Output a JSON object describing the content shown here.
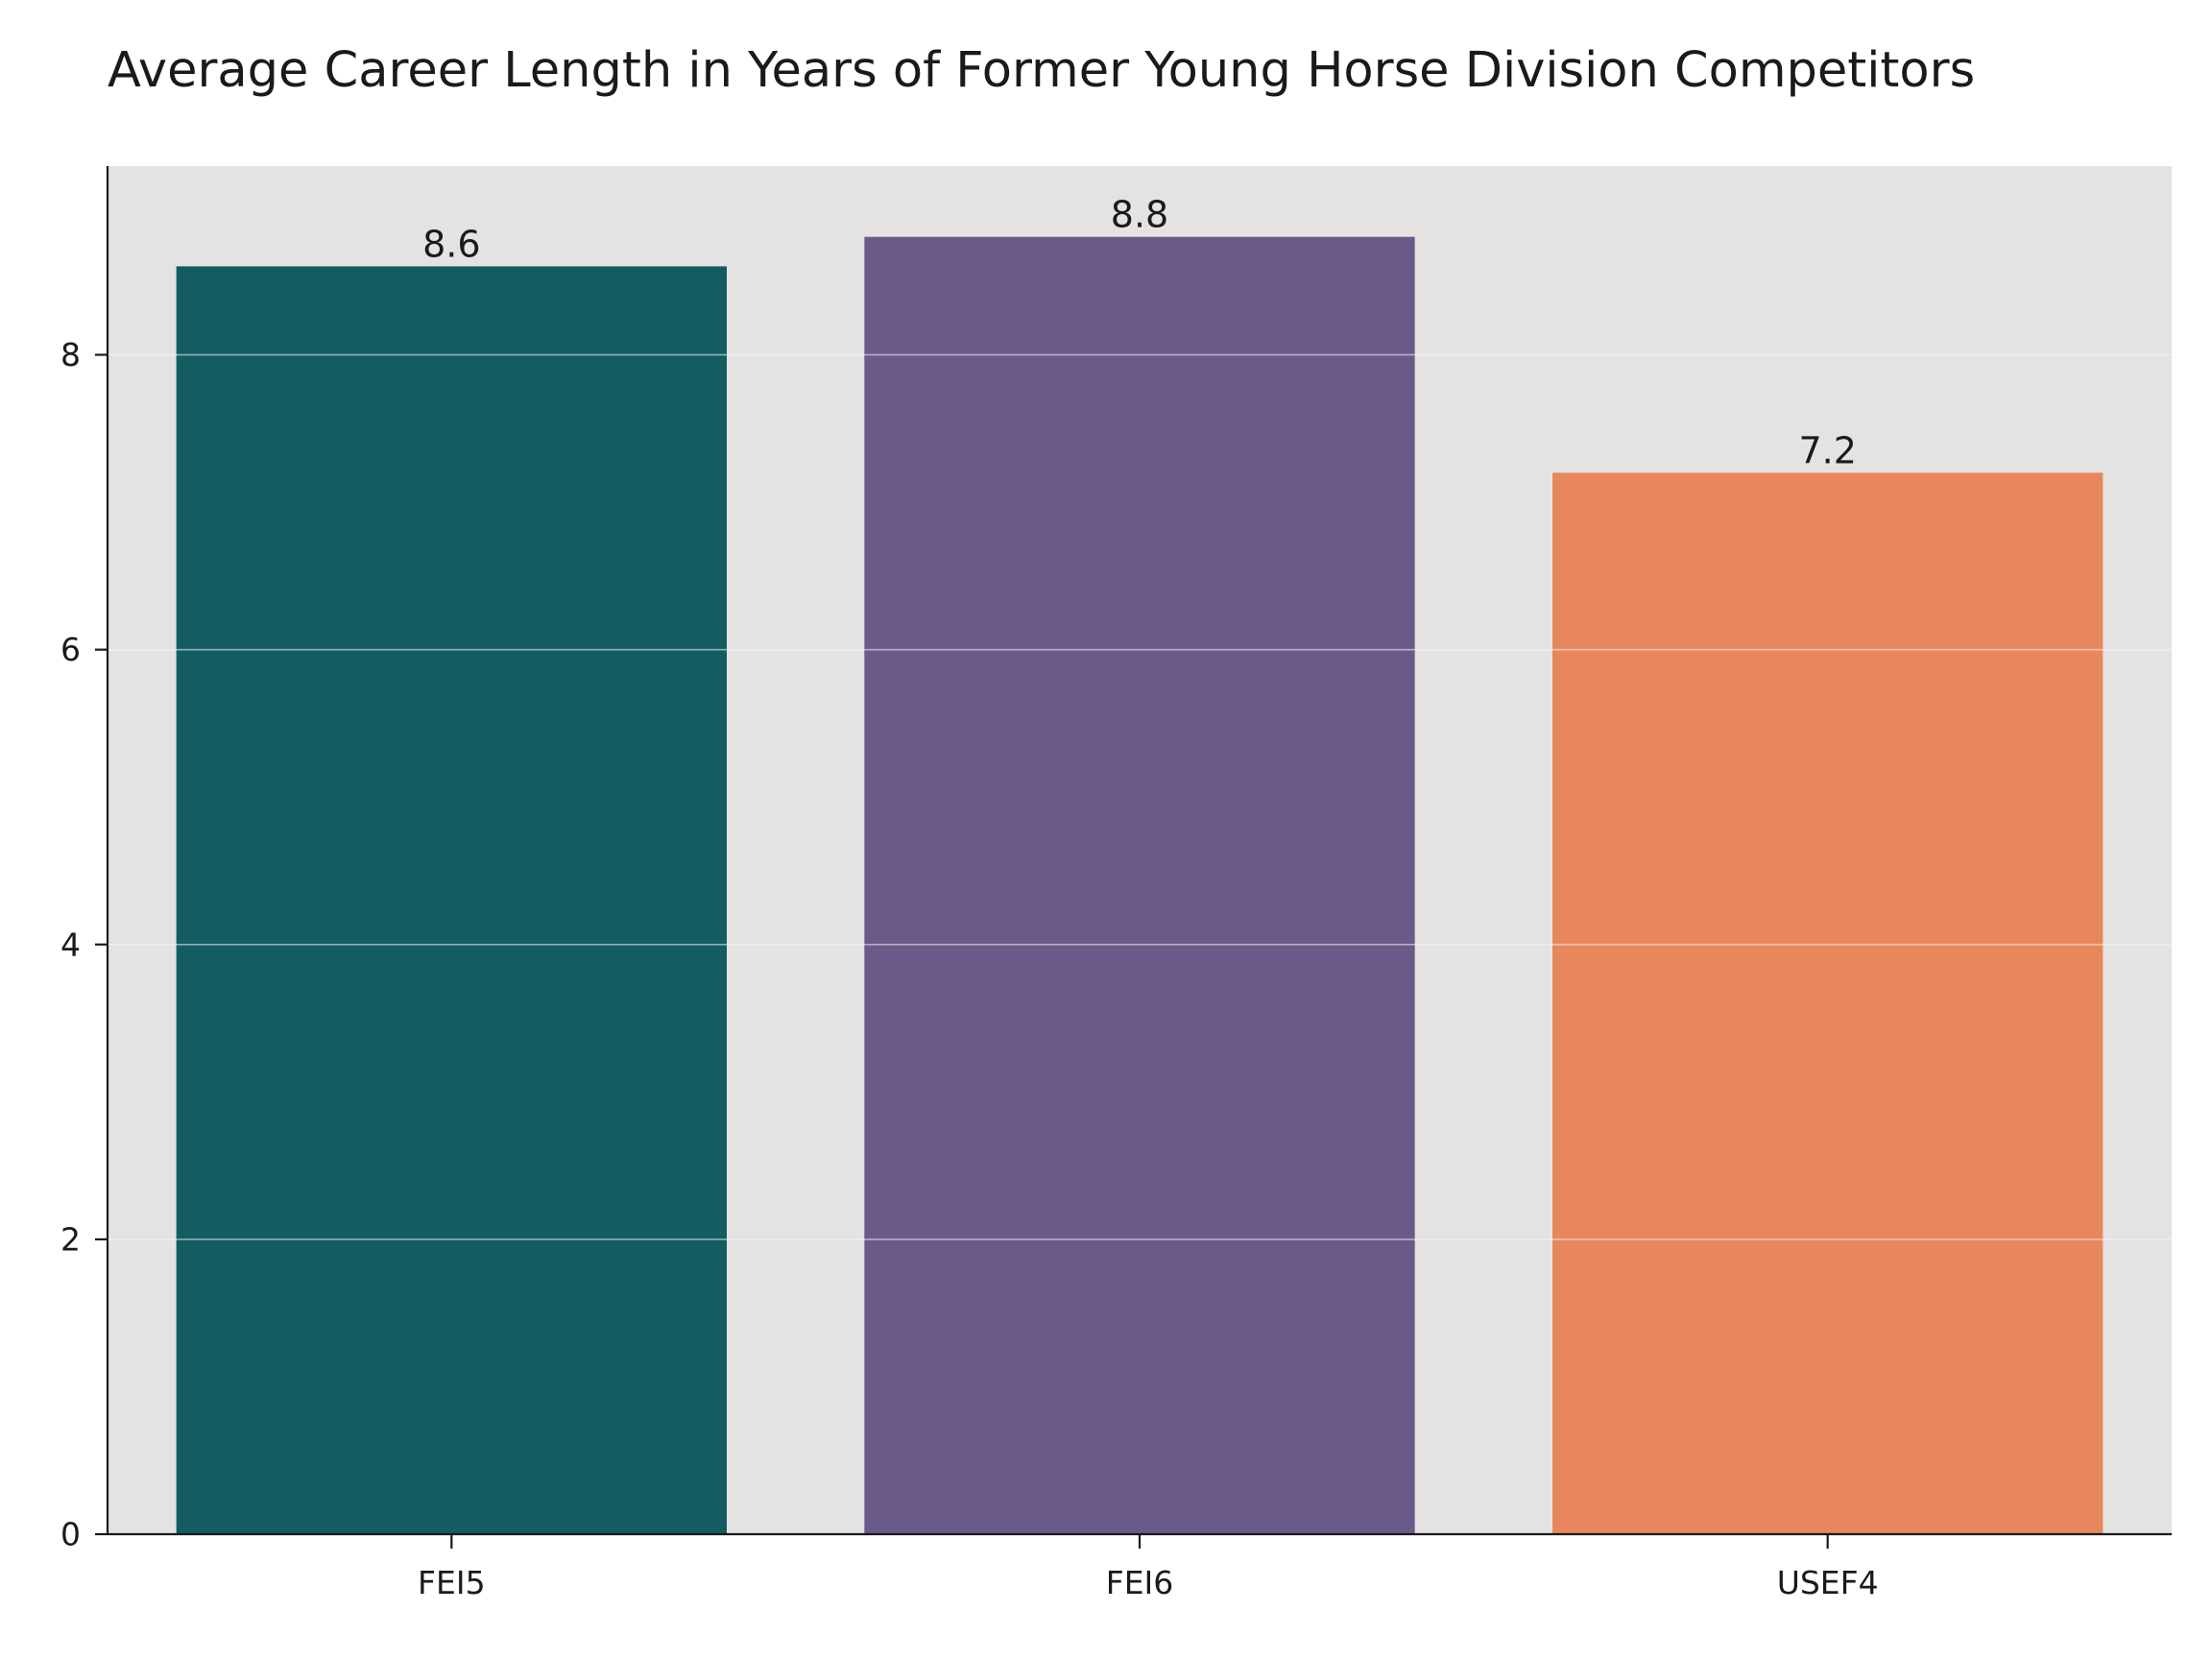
{
  "chart_data": {
    "type": "bar",
    "title": "Average Career Length in Years of Former Young Horse Division Competitors",
    "xlabel": "",
    "ylabel": "",
    "categories": [
      "FEI5",
      "FEI6",
      "USEF4"
    ],
    "values": [
      8.6,
      8.8,
      7.2
    ],
    "data_labels": [
      "8.6",
      "8.8",
      "7.2"
    ],
    "bar_colors": [
      "#135c61",
      "#6a5a8a",
      "#e8875c"
    ],
    "ylim": [
      0,
      9.28
    ],
    "yticks": [
      0,
      2,
      4,
      6,
      8
    ],
    "grid": true,
    "plot_background": "#e5e3e1",
    "grid_color": "#f7f6f5",
    "axis_color": "#1a1a1a",
    "legend": "none"
  }
}
